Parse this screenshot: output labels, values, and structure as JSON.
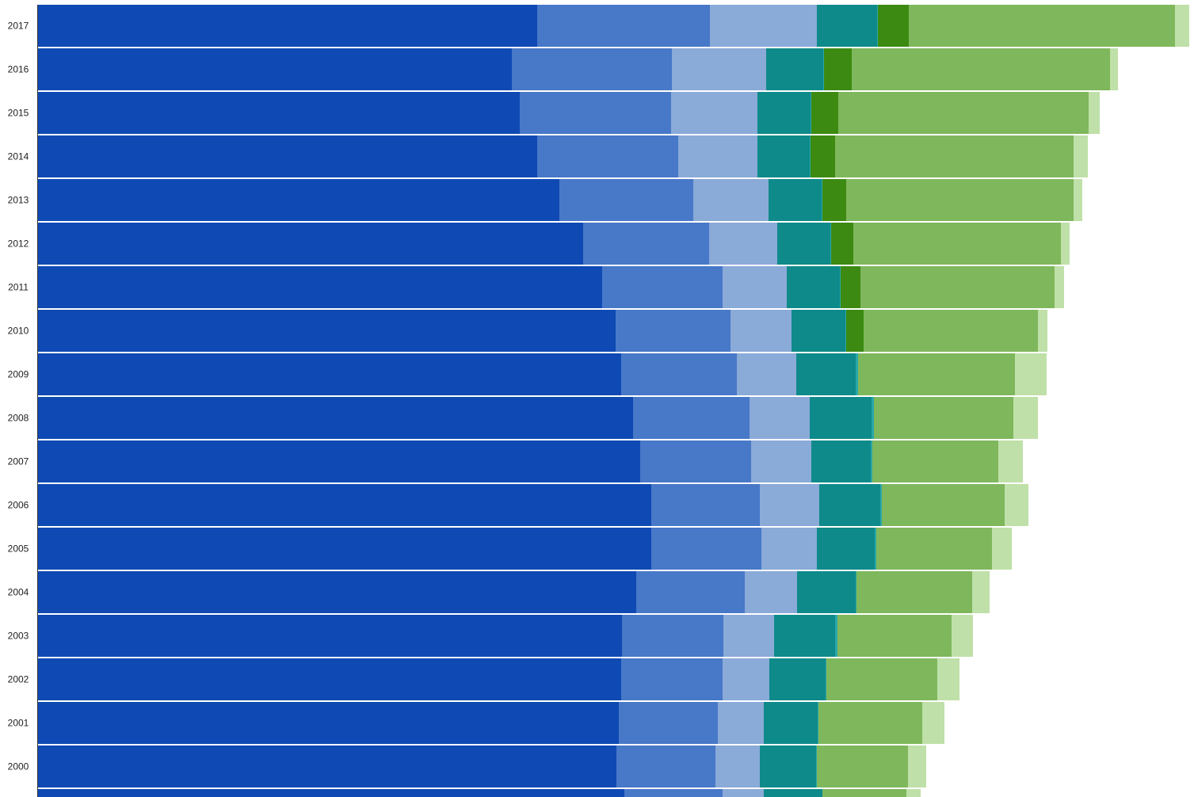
{
  "chart_data": {
    "type": "bar",
    "orientation": "horizontal",
    "stacked": true,
    "grid": false,
    "legend": "none",
    "title": "",
    "xlabel": "",
    "ylabel": "",
    "xlim": [
      0,
      1460
    ],
    "categories": [
      "2017",
      "2016",
      "2015",
      "2014",
      "2013",
      "2012",
      "2011",
      "2010",
      "2009",
      "2008",
      "2007",
      "2006",
      "2005",
      "2004",
      "2003",
      "2002",
      "2001",
      "2000",
      ""
    ],
    "series": [
      {
        "color": "#0f4ab4",
        "values": [
          630,
          598,
          608,
          630,
          658,
          688,
          712,
          729,
          736,
          751,
          760,
          774,
          774,
          755,
          737,
          736,
          733,
          730,
          740
        ]
      },
      {
        "color": "#4878c8",
        "values": [
          218,
          202,
          191,
          178,
          169,
          159,
          152,
          145,
          146,
          147,
          140,
          137,
          139,
          137,
          128,
          128,
          125,
          125,
          124
        ]
      },
      {
        "color": "#8aaad8",
        "values": [
          135,
          119,
          109,
          100,
          95,
          86,
          81,
          77,
          75,
          76,
          76,
          75,
          70,
          66,
          64,
          59,
          58,
          56,
          52
        ]
      },
      {
        "color": "#0f8a8a",
        "values": [
          76,
          72,
          67,
          66,
          67,
          67,
          67,
          68,
          75,
          78,
          75,
          77,
          73,
          74,
          77,
          71,
          68,
          71,
          74
        ]
      },
      {
        "color": "#2aa7a7",
        "values": [
          1,
          1,
          1,
          1,
          1,
          1,
          1,
          1,
          3,
          3,
          2,
          2,
          2,
          1,
          3,
          1,
          1,
          1,
          0
        ]
      },
      {
        "color": "#3c8a12",
        "values": [
          39,
          35,
          34,
          31,
          30,
          28,
          25,
          22,
          0,
          0,
          0,
          0,
          0,
          0,
          0,
          0,
          0,
          0,
          0
        ]
      },
      {
        "color": "#7fb75c",
        "values": [
          336,
          326,
          316,
          301,
          287,
          262,
          245,
          220,
          198,
          176,
          159,
          155,
          146,
          146,
          144,
          140,
          131,
          115,
          106
        ]
      },
      {
        "color": "#bfe0a8",
        "values": [
          18,
          10,
          14,
          18,
          11,
          11,
          12,
          12,
          40,
          31,
          31,
          30,
          25,
          22,
          27,
          28,
          28,
          23,
          18
        ]
      }
    ]
  }
}
